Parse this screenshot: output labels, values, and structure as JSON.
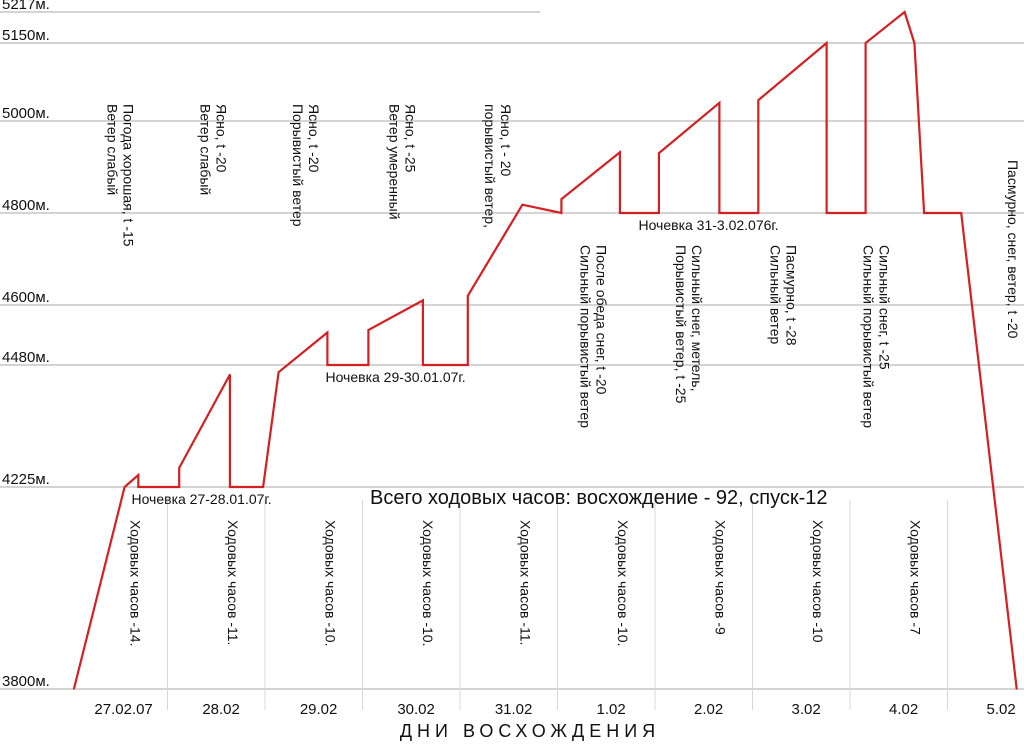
{
  "chart_data": {
    "type": "line",
    "xlabel": "ДНИ ВОСХОЖДЕНИЯ",
    "y_unit_suffix": "м.",
    "y_ticks": [
      3800,
      4225,
      4480,
      4600,
      4800,
      5000,
      5150,
      5217
    ],
    "y_tick_labels": [
      "3800м.",
      "4225м.",
      "4480м.",
      "4600м.",
      "4800м.",
      "5000м.",
      "5150м.",
      "5217м."
    ],
    "categories": [
      "27.02.07",
      "28.02",
      "29.02",
      "30.02",
      "31.02",
      "1.02",
      "2.02",
      "3.02",
      "4.02",
      "5.02"
    ],
    "line_color": "#d42020",
    "series": [
      {
        "values": [
          [
            0.04,
            3800
          ],
          [
            0.56,
            4225
          ],
          [
            0.7,
            4250
          ],
          [
            0.7,
            4225
          ],
          [
            1.12,
            4225
          ],
          [
            1.12,
            4265
          ],
          [
            1.64,
            4460
          ],
          [
            1.64,
            4225
          ],
          [
            1.98,
            4225
          ],
          [
            2.14,
            4465
          ],
          [
            2.64,
            4545
          ],
          [
            2.64,
            4480
          ],
          [
            3.06,
            4480
          ],
          [
            3.06,
            4550
          ],
          [
            3.62,
            4610
          ],
          [
            3.62,
            4480
          ],
          [
            4.08,
            4480
          ],
          [
            4.08,
            4620
          ],
          [
            4.64,
            4818
          ],
          [
            5.04,
            4800
          ],
          [
            5.04,
            4830
          ],
          [
            5.64,
            4932
          ],
          [
            5.64,
            4800
          ],
          [
            6.04,
            4800
          ],
          [
            6.04,
            4930
          ],
          [
            6.66,
            5035
          ],
          [
            6.66,
            4800
          ],
          [
            7.06,
            4800
          ],
          [
            7.06,
            5040
          ],
          [
            7.76,
            5150
          ],
          [
            7.76,
            4800
          ],
          [
            8.16,
            4800
          ],
          [
            8.16,
            5150
          ],
          [
            8.56,
            5217
          ],
          [
            8.66,
            5150
          ],
          [
            8.76,
            4800
          ],
          [
            9.14,
            4800
          ],
          [
            9.71,
            3800
          ]
        ]
      }
    ],
    "total_hours": "Всего ходовых часов: восхождение - 92, спуск-12",
    "night_stops": [
      {
        "label": "Ночевка  27-28.01.07г.",
        "day": 1.35,
        "alt": 4225
      },
      {
        "label": "Ночевка  29-30.01.07г.",
        "day": 3.34,
        "alt": 4480
      },
      {
        "label": "Ночевка  31-3.02.076г.",
        "day": 6.55,
        "alt": 4800
      }
    ],
    "hours": [
      "Ходовых часов -14.",
      "Ходовых часов -11.",
      "Ходовых часов -10.",
      "Ходовых часов -10.",
      "Ходовых часов -11.",
      "Ходовых часов -10.",
      "Ходовых часов -9",
      "Ходовых часов -10",
      "Ходовых часов -7"
    ],
    "weather": [
      {
        "day": 0.55,
        "lines": [
          "Погода хорошая, t -15",
          "Ветер слабый"
        ]
      },
      {
        "day": 1.5,
        "lines": [
          "Ясно, t -20",
          "Ветер слабый"
        ]
      },
      {
        "day": 2.45,
        "lines": [
          "Ясно, t -20",
          "Порывистый ветер"
        ]
      },
      {
        "day": 3.44,
        "lines": [
          "Ясно, t -25",
          "Ветер умеренный"
        ]
      },
      {
        "day": 4.42,
        "lines": [
          "Ясно, t - 20",
          "порывистый ветер,"
        ]
      },
      {
        "day": 5.4,
        "lines": [
          "После обеда снег, t -20",
          "Сильный порывистый ветер"
        ]
      },
      {
        "day": 6.38,
        "lines": [
          "Сильный  снег,  метель,",
          "Порывистый ветер, t -25"
        ]
      },
      {
        "day": 7.35,
        "lines": [
          "Пасмурно, t -28",
          "Сильный ветер"
        ]
      },
      {
        "day": 8.3,
        "lines": [
          "Сильный снег, t -25",
          "Сильный порывистый ветер"
        ]
      },
      {
        "day": 9.62,
        "lines": [
          "Пасмурно, снег, ветер, t -20"
        ]
      }
    ]
  }
}
